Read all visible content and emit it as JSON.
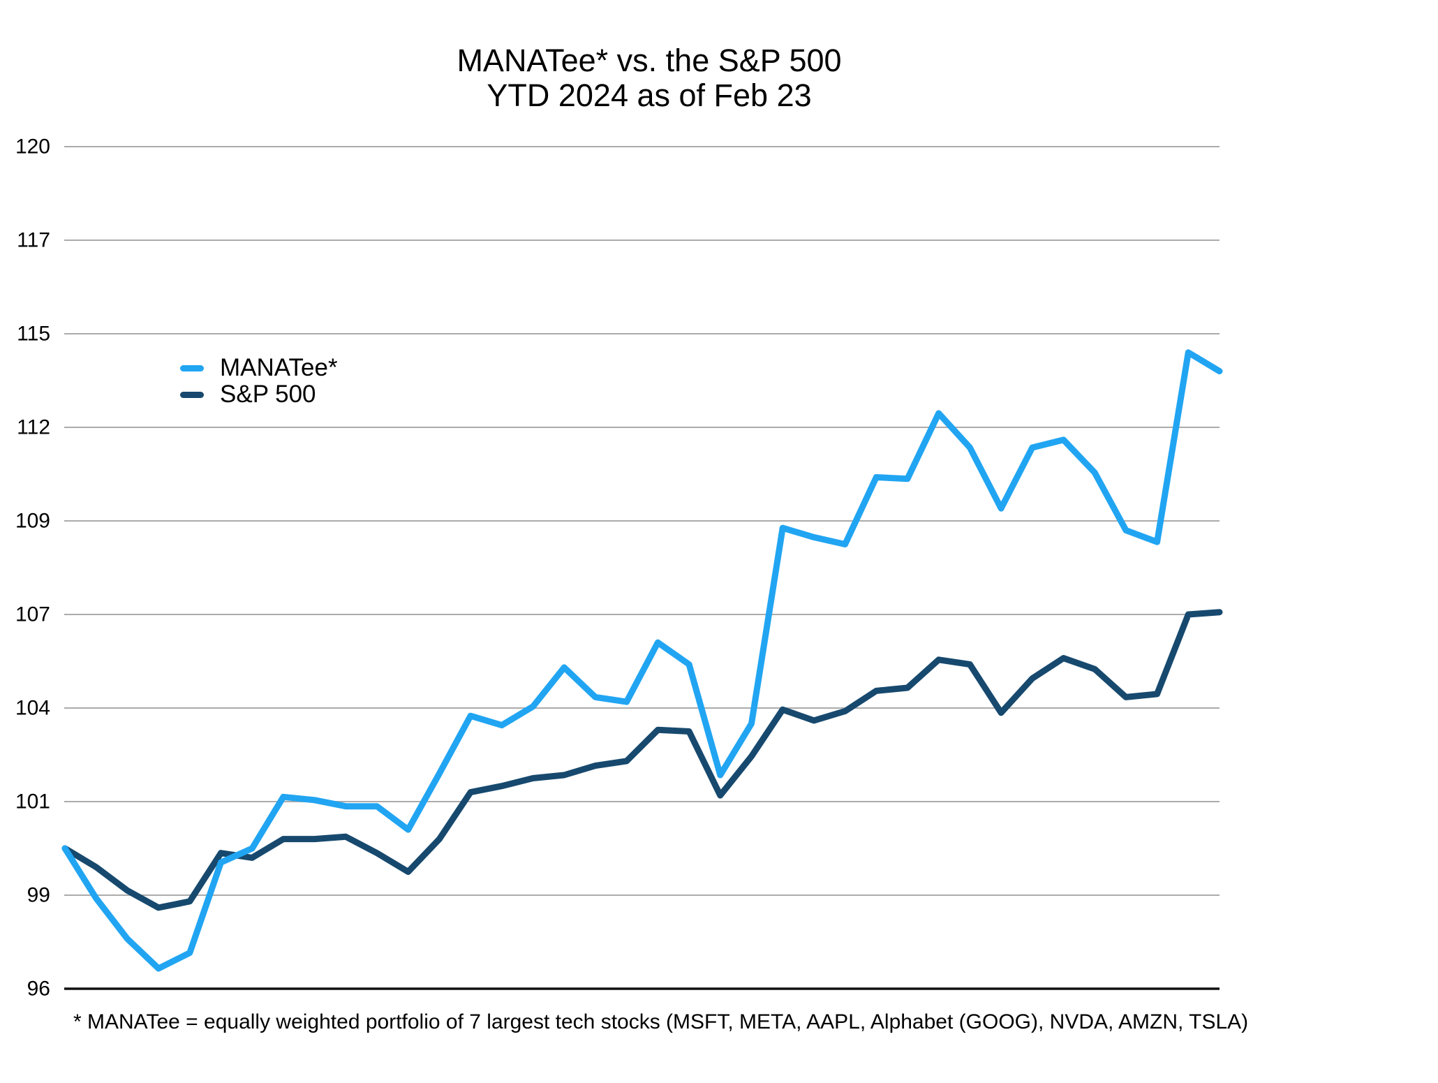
{
  "chart_data": {
    "type": "line",
    "title": "MANATee* vs. the S&P 500",
    "subtitle": "YTD 2024 as of Feb 23",
    "footnote": "* MANATee = equally weighted portfolio of 7 largest tech stocks (MSFT, META, AAPL, Alphabet (GOOG), NVDA, AMZN, TSLA)",
    "ylabel": "",
    "xlabel": "",
    "x_tick_labels_visible": false,
    "y_ticks": [
      120,
      117,
      115,
      112,
      109,
      107,
      104,
      101,
      99,
      96
    ],
    "ylim": [
      96,
      120
    ],
    "grid": true,
    "grid_color": "#ABABAB",
    "axis_color": "#111111",
    "background_color": "#FFFFFF",
    "legend_position": "upper-left-inside",
    "legend": [
      {
        "label": "MANATee*",
        "color": "#21A5F2"
      },
      {
        "label": "S&P 500",
        "color": "#17496E"
      }
    ],
    "series": [
      {
        "name": "MANATee*",
        "color": "#21A5F2",
        "values": [
          100.0,
          98.9,
          97.6,
          96.65,
          97.15,
          99.7,
          100.0,
          101.15,
          101.05,
          100.9,
          100.9,
          100.4,
          101.9,
          103.75,
          103.45,
          104.05,
          105.3,
          104.35,
          104.2,
          106.1,
          105.4,
          101.85,
          103.5,
          108.85,
          108.65,
          108.5,
          110.4,
          110.35,
          112.45,
          111.35,
          109.4,
          111.35,
          111.6,
          110.55,
          108.8,
          108.55,
          114.4,
          113.8
        ]
      },
      {
        "name": "S&P 500",
        "color": "#17496E",
        "values": [
          100.0,
          99.6,
          99.1,
          98.6,
          98.8,
          99.9,
          99.8,
          100.2,
          100.2,
          100.25,
          99.9,
          99.5,
          100.2,
          101.3,
          101.5,
          101.75,
          101.85,
          102.15,
          102.3,
          103.3,
          103.25,
          101.2,
          102.45,
          103.95,
          103.6,
          103.9,
          104.55,
          104.65,
          105.55,
          105.4,
          103.85,
          104.95,
          105.6,
          105.25,
          104.35,
          104.45,
          107.0,
          107.05
        ]
      }
    ]
  }
}
